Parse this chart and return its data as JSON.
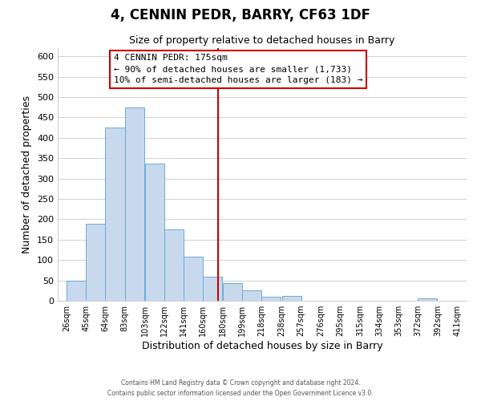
{
  "title": "4, CENNIN PEDR, BARRY, CF63 1DF",
  "subtitle": "Size of property relative to detached houses in Barry",
  "xlabel": "Distribution of detached houses by size in Barry",
  "ylabel": "Number of detached properties",
  "bar_left_edges": [
    26,
    45,
    64,
    83,
    103,
    122,
    141,
    160,
    180,
    199,
    218,
    238,
    257,
    276,
    295,
    315,
    334,
    353,
    372,
    392
  ],
  "bar_heights": [
    50,
    188,
    425,
    475,
    336,
    175,
    108,
    60,
    44,
    25,
    10,
    11,
    0,
    0,
    0,
    0,
    0,
    0,
    6,
    0
  ],
  "bin_width": 19,
  "bar_color": "#c8d9ee",
  "bar_edgecolor": "#6aaad4",
  "reference_line_x": 175,
  "reference_line_color": "#cc0000",
  "annotation_title": "4 CENNIN PEDR: 175sqm",
  "annotation_line1": "← 90% of detached houses are smaller (1,733)",
  "annotation_line2": "10% of semi-detached houses are larger (183) →",
  "annotation_box_facecolor": "#ffffff",
  "annotation_box_edgecolor": "#cc0000",
  "ylim": [
    0,
    620
  ],
  "yticks": [
    0,
    50,
    100,
    150,
    200,
    250,
    300,
    350,
    400,
    450,
    500,
    550,
    600
  ],
  "xtick_labels": [
    "26sqm",
    "45sqm",
    "64sqm",
    "83sqm",
    "103sqm",
    "122sqm",
    "141sqm",
    "160sqm",
    "180sqm",
    "199sqm",
    "218sqm",
    "238sqm",
    "257sqm",
    "276sqm",
    "295sqm",
    "315sqm",
    "334sqm",
    "353sqm",
    "372sqm",
    "392sqm",
    "411sqm"
  ],
  "xtick_positions": [
    26,
    45,
    64,
    83,
    103,
    122,
    141,
    160,
    180,
    199,
    218,
    238,
    257,
    276,
    295,
    315,
    334,
    353,
    372,
    392,
    411
  ],
  "footer1": "Contains HM Land Registry data © Crown copyright and database right 2024.",
  "footer2": "Contains public sector information licensed under the Open Government Licence v3.0.",
  "background_color": "#ffffff",
  "grid_color": "#d0d0d0",
  "xlim_left": 17,
  "xlim_right": 420
}
